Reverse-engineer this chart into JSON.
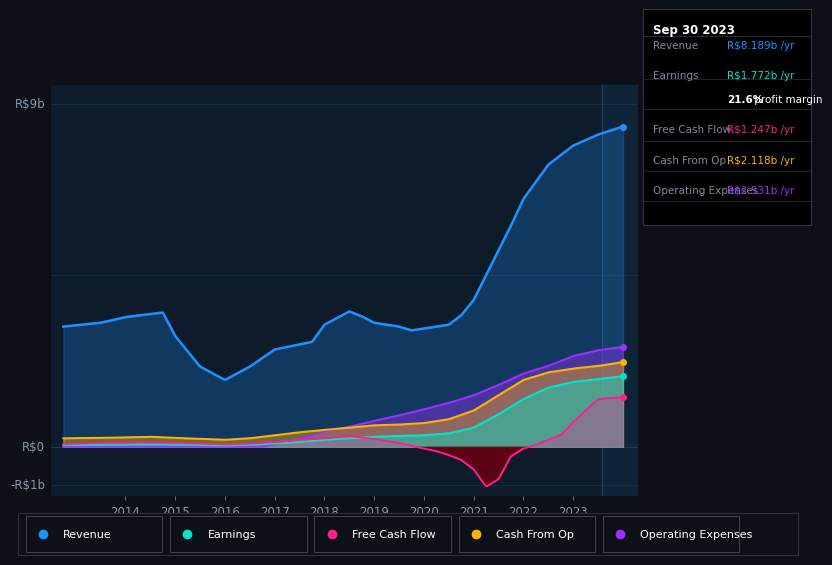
{
  "bg_color": "#0d1117",
  "plot_bg_color": "#0d1b2a",
  "grid_color": "#1e3a5f",
  "y_label_top": "R$9b",
  "y_label_zero": "R$0",
  "y_label_neg": "-R$1b",
  "ylim": [
    -1.3,
    9.5
  ],
  "xlim": [
    2012.5,
    2024.3
  ],
  "x_ticks": [
    2014,
    2015,
    2016,
    2017,
    2018,
    2019,
    2020,
    2021,
    2022,
    2023
  ],
  "colors": {
    "revenue": "#1e90ff",
    "earnings": "#00e5cc",
    "free_cash_flow": "#ff1e8e",
    "cash_from_op": "#ffb300",
    "operating_expenses": "#9b30ff"
  },
  "info_box": {
    "title": "Sep 30 2023",
    "rows": [
      {
        "label": "Revenue",
        "value": "R$8.189b /yr",
        "val_color": "#1e90ff"
      },
      {
        "label": "Earnings",
        "value": "R$1.772b /yr",
        "val_color": "#00e5cc"
      },
      {
        "label": "",
        "value": "21.6% profit margin",
        "val_color": "#ffffff"
      },
      {
        "label": "Free Cash Flow",
        "value": "R$1.247b /yr",
        "val_color": "#ff1e8e"
      },
      {
        "label": "Cash From Op",
        "value": "R$2.118b /yr",
        "val_color": "#ffb300"
      },
      {
        "label": "Operating Expenses",
        "value": "R$2.531b /yr",
        "val_color": "#9b30ff"
      }
    ]
  },
  "legend": [
    {
      "label": "Revenue",
      "color": "#1e90ff"
    },
    {
      "label": "Earnings",
      "color": "#00e5cc"
    },
    {
      "label": "Free Cash Flow",
      "color": "#ff1e8e"
    },
    {
      "label": "Cash From Op",
      "color": "#ffb300"
    },
    {
      "label": "Operating Expenses",
      "color": "#9b30ff"
    }
  ]
}
